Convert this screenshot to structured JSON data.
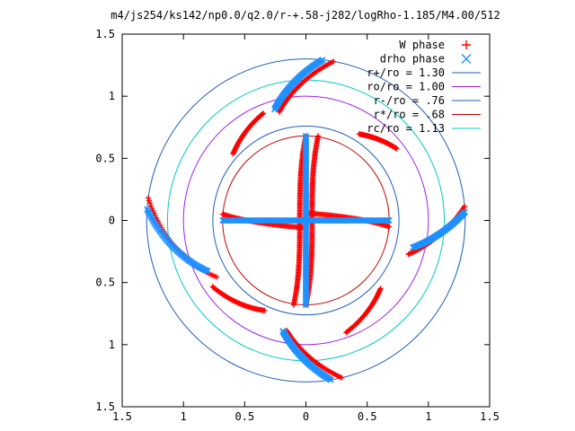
{
  "chart_data": {
    "type": "scatter",
    "title": "m4/js254/ks142/np0.0/q2.0/r-+.58-j282/logRho-1.185/M4.00/512",
    "xlabel": "",
    "ylabel": "",
    "xlim": [
      -1.5,
      1.5
    ],
    "ylim": [
      -1.5,
      1.5
    ],
    "x_ticks": [
      "1.5",
      "1",
      "0.5",
      "0",
      "0.5",
      "1",
      "1.5"
    ],
    "y_ticks": [
      "1.5",
      "1",
      "0.5",
      "0",
      "0.5",
      "1",
      "1.5"
    ],
    "grid": false,
    "legend_position": "top-right",
    "circles": [
      {
        "label": "r+/ro = 1.30",
        "r": 1.3,
        "color": "#1f5fbf"
      },
      {
        "label": "ro/ro = 1.00",
        "r": 1.0,
        "color": "#a020f0"
      },
      {
        "label": "r-/ro = .76",
        "r": 0.76,
        "color": "#1f5fbf"
      },
      {
        "label": "r*/ro = .68",
        "r": 0.68,
        "color": "#c00000"
      },
      {
        "label": "rc/ro = 1.13",
        "r": 1.13,
        "color": "#00c8c8"
      }
    ],
    "series": [
      {
        "name": "W phase",
        "color": "#ff0000",
        "marker": "+"
      },
      {
        "name": "drho phase",
        "color": "#1e90ff",
        "marker": "x"
      }
    ],
    "arms": {
      "w_phase": [
        {
          "theta": [
            80,
            104
          ],
          "r": [
            1.3,
            0.9
          ]
        },
        {
          "theta": [
            112,
            138
          ],
          "r": [
            0.93,
            0.8
          ]
        },
        {
          "theta": [
            172,
            212
          ],
          "r": [
            1.3,
            0.86
          ]
        },
        {
          "theta": [
            215,
            245
          ],
          "r": [
            0.93,
            0.8
          ]
        },
        {
          "theta": [
            283,
            260
          ],
          "r": [
            1.3,
            0.9
          ]
        },
        {
          "theta": [
            290,
            318
          ],
          "r": [
            0.96,
            0.82
          ]
        },
        {
          "theta": [
            5,
            -18
          ],
          "r": [
            1.3,
            0.88
          ]
        },
        {
          "theta": [
            38,
            58
          ],
          "r": [
            0.94,
            0.82
          ]
        }
      ],
      "drho_phase": [
        {
          "theta": [
            84,
            106
          ],
          "r": [
            1.3,
            0.93
          ]
        },
        {
          "theta": [
            176,
            207
          ],
          "r": [
            1.3,
            0.9
          ]
        },
        {
          "theta": [
            279,
            258
          ],
          "r": [
            1.3,
            0.91
          ]
        },
        {
          "theta": [
            3,
            -14
          ],
          "r": [
            1.3,
            0.9
          ]
        }
      ],
      "cross_arm_length": 0.68
    }
  }
}
